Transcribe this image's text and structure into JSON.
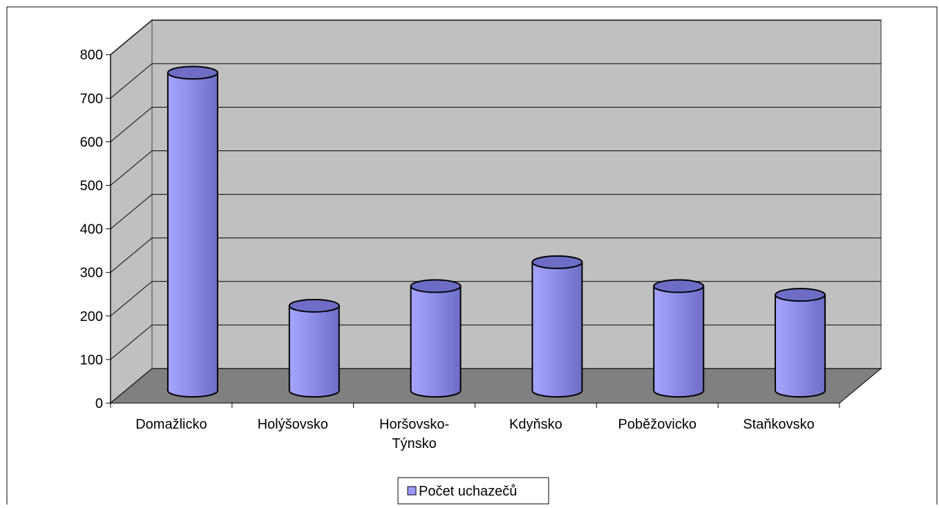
{
  "chart_data": {
    "type": "bar",
    "style": "3d-cylinder",
    "categories": [
      "Domažlicko",
      "Holýšovsko",
      "Horšovsko-Týnsko",
      "Kdyňsko",
      "Poběžovicko",
      "Staňkovsko"
    ],
    "category_lines": [
      [
        "Domažlicko"
      ],
      [
        "Holýšovsko"
      ],
      [
        "Horšovsko-",
        "Týnsko"
      ],
      [
        "Kdyňsko"
      ],
      [
        "Poběžovicko"
      ],
      [
        "Staňkovsko"
      ]
    ],
    "series": [
      {
        "name": "Počet uchazečů",
        "values": [
          730,
          195,
          240,
          295,
          240,
          220
        ],
        "color": "#9999ff"
      }
    ],
    "ylim": [
      0,
      800
    ],
    "yticks": [
      0,
      100,
      200,
      300,
      400,
      500,
      600,
      700,
      800
    ],
    "grid": true,
    "legend": "bottom-center",
    "colors": {
      "wall": "#c0c0c0",
      "floor": "#808080",
      "bar_light": "#a5a5ff",
      "bar_dark": "#6d6dc6"
    }
  }
}
